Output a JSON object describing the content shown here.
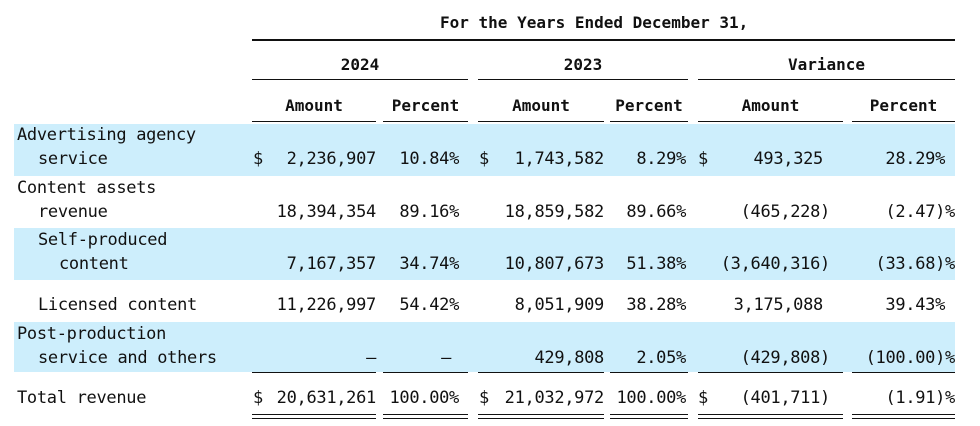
{
  "header": {
    "period": "For the  Years Ended December  31,",
    "col_2024": "2024",
    "col_2023": "2023",
    "col_variance": "Variance",
    "amount": "Amount",
    "percent": "Percent"
  },
  "rows": [
    {
      "label_line1": "Advertising agency",
      "label_line2": "service",
      "a2024": "2,236,907",
      "p2024": "10.84%",
      "a2023": "1,743,582",
      "p2023": "8.29%",
      "av": "493,325",
      "pv": "28.29%"
    },
    {
      "label_line1": "Content assets",
      "label_line2": "revenue",
      "a2024": "18,394,354",
      "p2024": "89.16%",
      "a2023": "18,859,582",
      "p2023": "89.66%",
      "av": "(465,228)",
      "pv": "(2.47)%"
    },
    {
      "label_line1": "Self-produced",
      "label_line2": "content",
      "a2024": "7,167,357",
      "p2024": "34.74%",
      "a2023": "10,807,673",
      "p2023": "51.38%",
      "av": "(3,640,316)",
      "pv": "(33.68)%"
    },
    {
      "label_line1": "Licensed content",
      "a2024": "11,226,997",
      "p2024": "54.42%",
      "a2023": "8,051,909",
      "p2023": "38.28%",
      "av": "3,175,088",
      "pv": "39.43%"
    },
    {
      "label_line1": "Post-production",
      "label_line2": "service and others",
      "a2024": "—",
      "p2024": "—",
      "a2023": "429,808",
      "p2023": "2.05%",
      "av": "(429,808)",
      "pv": "(100.00)%"
    },
    {
      "label_line1": "Total revenue",
      "a2024": "20,631,261",
      "p2024": "100.00%",
      "a2023": "21,032,972",
      "p2023": "100.00%",
      "av": "(401,711)",
      "pv": "(1.91)%"
    }
  ],
  "currency": "$",
  "colors": {
    "highlight": "#cdeefc",
    "text": "#111111"
  }
}
